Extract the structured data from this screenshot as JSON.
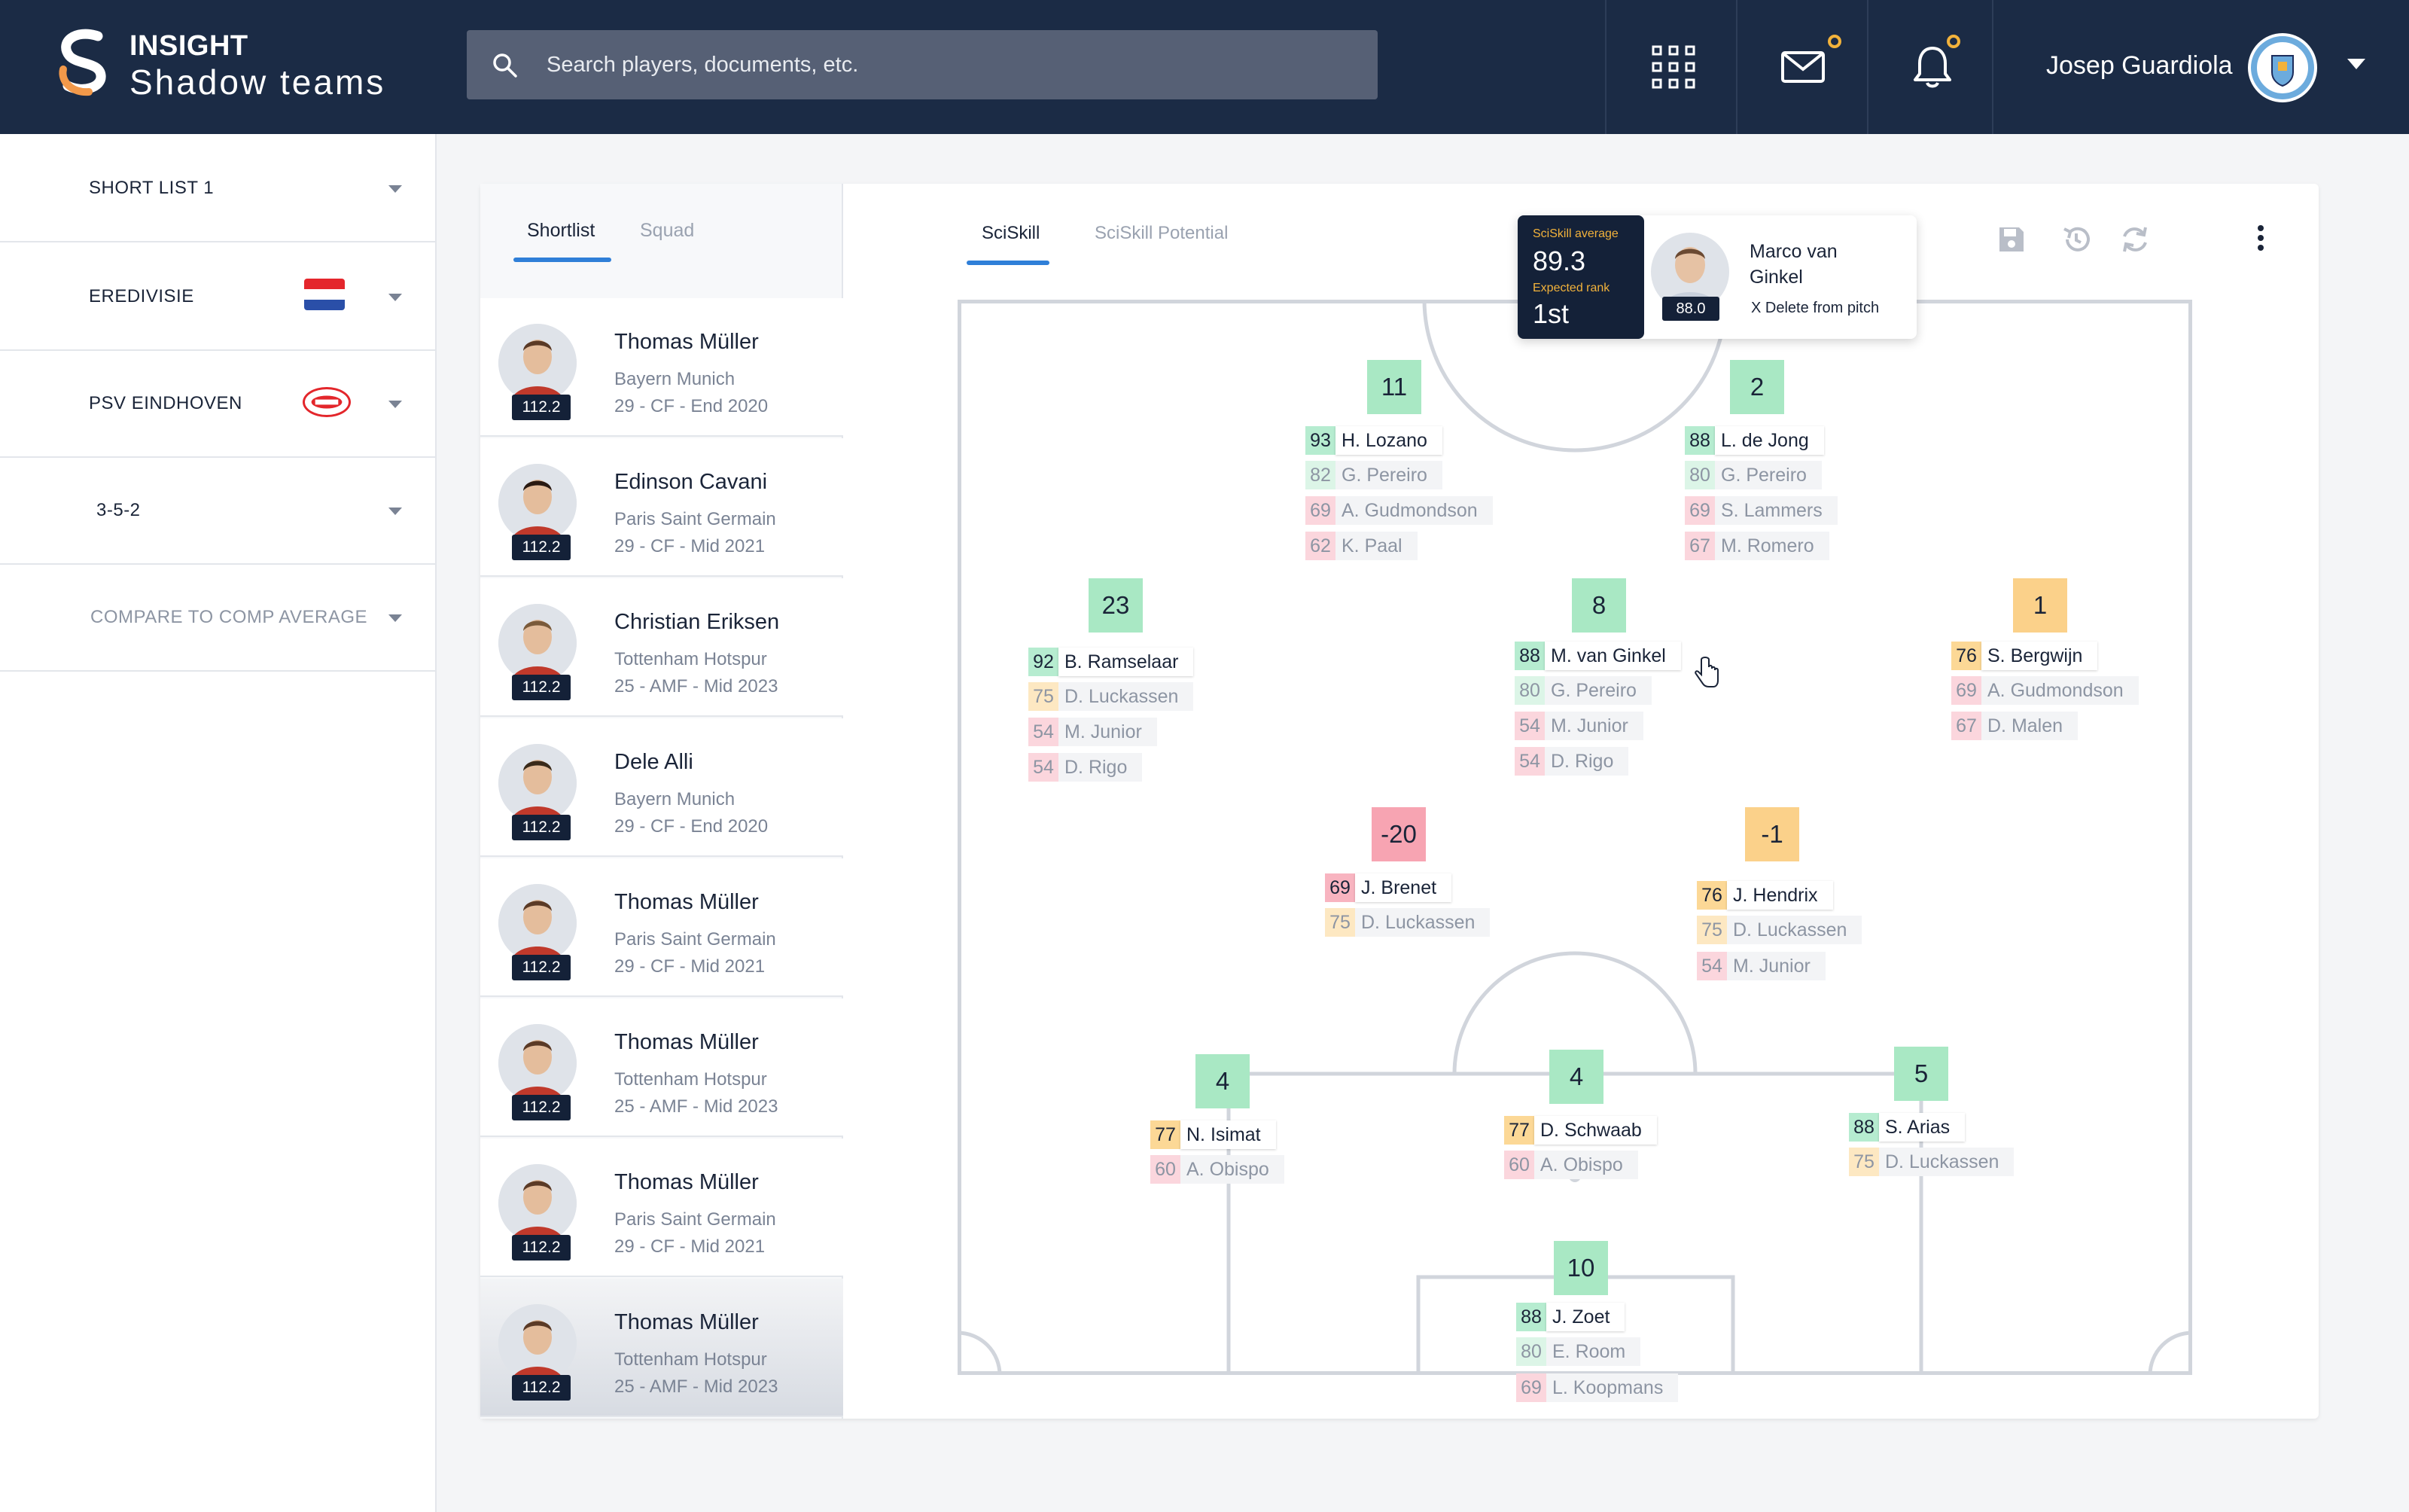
{
  "app": {
    "brand_top": "INSIGHT",
    "brand_bottom": "Shadow teams"
  },
  "search": {
    "placeholder": "Search players, documents, etc."
  },
  "user": {
    "name": "Josep Guardiola"
  },
  "filters": [
    {
      "label": "SHORT LIST 1"
    },
    {
      "label": "EREDIVISIE"
    },
    {
      "label": "PSV EINDHOVEN"
    },
    {
      "label": "3-5-2"
    },
    {
      "label": "COMPARE TO COMP AVERAGE"
    }
  ],
  "list_tabs": {
    "active": "Shortlist",
    "inactive": "Squad"
  },
  "players": [
    {
      "name": "Thomas Müller",
      "club": "Bayern Munich",
      "meta": "29 - CF - End 2020",
      "rating": "112.2"
    },
    {
      "name": "Edinson Cavani",
      "club": "Paris Saint Germain",
      "meta": "29 - CF - Mid 2021",
      "rating": "112.2"
    },
    {
      "name": "Christian Eriksen",
      "club": "Tottenham Hotspur",
      "meta": "25 - AMF - Mid 2023",
      "rating": "112.2"
    },
    {
      "name": "Dele Alli",
      "club": "Bayern Munich",
      "meta": "29 - CF - End 2020",
      "rating": "112.2"
    },
    {
      "name": "Thomas Müller",
      "club": "Paris Saint Germain",
      "meta": "29 - CF - Mid 2021",
      "rating": "112.2"
    },
    {
      "name": "Thomas Müller",
      "club": "Tottenham Hotspur",
      "meta": "25 - AMF - Mid 2023",
      "rating": "112.2"
    },
    {
      "name": "Thomas Müller",
      "club": "Paris Saint Germain",
      "meta": "29 - CF - Mid 2021",
      "rating": "112.2"
    },
    {
      "name": "Thomas Müller",
      "club": "Tottenham Hotspur",
      "meta": "25 - AMF - Mid 2023",
      "rating": "112.2"
    }
  ],
  "pitch_tabs": {
    "active": "SciSkill",
    "inactive": "SciSkill Potential"
  },
  "tooltip": {
    "avg_label": "SciSkill average",
    "avg_value": "89.3",
    "rank_label": "Expected rank",
    "rank_value": "1st",
    "player_name_1": "Marco van",
    "player_name_2": "Ginkel",
    "player_rating": "88.0",
    "delete_label": "X  Delete from pitch"
  },
  "slots": {
    "s11": {
      "number": "11",
      "main": {
        "score": "93",
        "name": "H. Lozano"
      },
      "alts": [
        {
          "score": "82",
          "name": "G. Pereiro"
        },
        {
          "score": "69",
          "name": "A. Gudmondson"
        },
        {
          "score": "62",
          "name": "K. Paal"
        }
      ]
    },
    "s2": {
      "number": "2",
      "main": {
        "score": "88",
        "name": "L. de Jong"
      },
      "alts": [
        {
          "score": "80",
          "name": "G. Pereiro"
        },
        {
          "score": "69",
          "name": "S. Lammers"
        },
        {
          "score": "67",
          "name": "M. Romero"
        }
      ]
    },
    "s23": {
      "number": "23",
      "main": {
        "score": "92",
        "name": "B. Ramselaar"
      },
      "alts": [
        {
          "score": "75",
          "name": "D. Luckassen"
        },
        {
          "score": "54",
          "name": "M. Junior"
        },
        {
          "score": "54",
          "name": "D. Rigo"
        }
      ]
    },
    "s8": {
      "number": "8",
      "main": {
        "score": "88",
        "name": "M. van Ginkel"
      },
      "alts": [
        {
          "score": "80",
          "name": "G. Pereiro"
        },
        {
          "score": "54",
          "name": "M. Junior"
        },
        {
          "score": "54",
          "name": "D. Rigo"
        }
      ]
    },
    "s1": {
      "number": "1",
      "main": {
        "score": "76",
        "name": "S. Bergwijn"
      },
      "alts": [
        {
          "score": "69",
          "name": "A. Gudmondson"
        },
        {
          "score": "67",
          "name": "D. Malen"
        }
      ]
    },
    "sm20": {
      "number": "-20",
      "main": {
        "score": "69",
        "name": "J. Brenet"
      },
      "alts": [
        {
          "score": "75",
          "name": "D. Luckassen"
        }
      ]
    },
    "sm1": {
      "number": "-1",
      "main": {
        "score": "76",
        "name": "J. Hendrix"
      },
      "alts": [
        {
          "score": "75",
          "name": "D. Luckassen"
        },
        {
          "score": "54",
          "name": "M. Junior"
        }
      ]
    },
    "s4a": {
      "number": "4",
      "main": {
        "score": "77",
        "name": "N. Isimat"
      },
      "alts": [
        {
          "score": "60",
          "name": "A. Obispo"
        }
      ]
    },
    "s4b": {
      "number": "4",
      "main": {
        "score": "77",
        "name": "D. Schwaab"
      },
      "alts": [
        {
          "score": "60",
          "name": "A. Obispo"
        }
      ]
    },
    "s5": {
      "number": "5",
      "main": {
        "score": "88",
        "name": "S. Arias"
      },
      "alts": [
        {
          "score": "75",
          "name": "D. Luckassen"
        }
      ]
    },
    "s10": {
      "number": "10",
      "main": {
        "score": "88",
        "name": "J. Zoet"
      },
      "alts": [
        {
          "score": "80",
          "name": "E. Room"
        },
        {
          "score": "69",
          "name": "L. Koopmans"
        }
      ]
    }
  }
}
